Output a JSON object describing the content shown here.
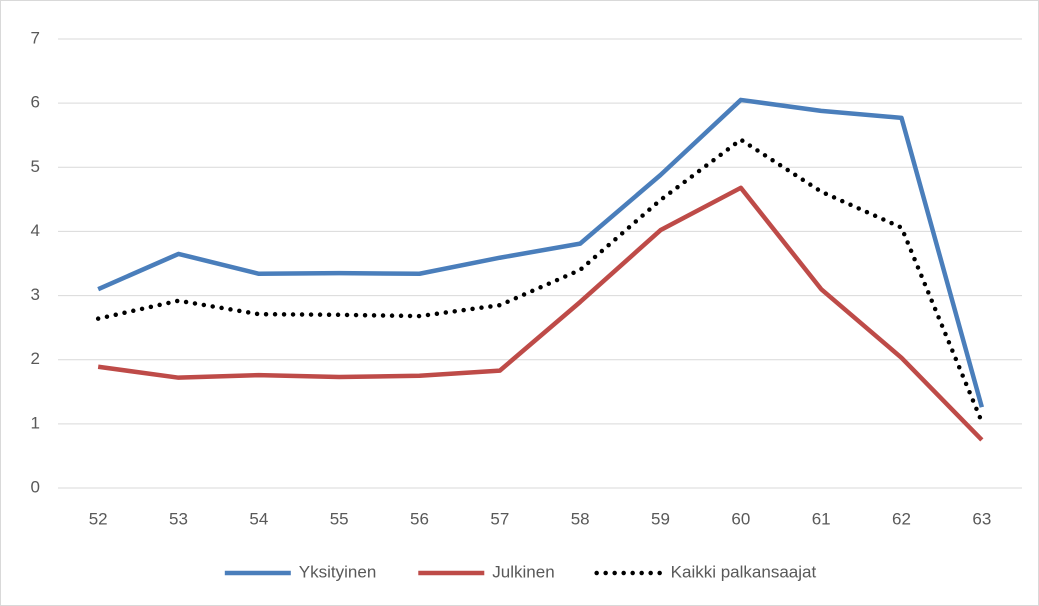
{
  "chart_data": {
    "type": "line",
    "categories": [
      "52",
      "53",
      "54",
      "55",
      "56",
      "57",
      "58",
      "59",
      "60",
      "61",
      "62",
      "63"
    ],
    "series": [
      {
        "name": "Yksityinen",
        "color": "#4a7ebb",
        "style": "solid",
        "values": [
          3.1,
          3.65,
          3.34,
          3.35,
          3.34,
          3.59,
          3.81,
          4.88,
          6.05,
          5.88,
          5.77,
          1.26
        ]
      },
      {
        "name": "Julkinen",
        "color": "#be4b48",
        "style": "solid",
        "values": [
          1.89,
          1.72,
          1.76,
          1.73,
          1.75,
          1.83,
          2.9,
          4.02,
          4.68,
          3.1,
          2.03,
          0.75
        ]
      },
      {
        "name": "Kaikki palkansaajat",
        "color": "#000000",
        "style": "dotted",
        "values": [
          2.64,
          2.92,
          2.71,
          2.7,
          2.68,
          2.85,
          3.4,
          4.49,
          5.43,
          4.62,
          4.06,
          1.03
        ]
      }
    ],
    "ylim": [
      0,
      7
    ],
    "yticks": [
      0,
      1,
      2,
      3,
      4,
      5,
      6,
      7
    ],
    "grid": true,
    "legend": "bottom"
  }
}
